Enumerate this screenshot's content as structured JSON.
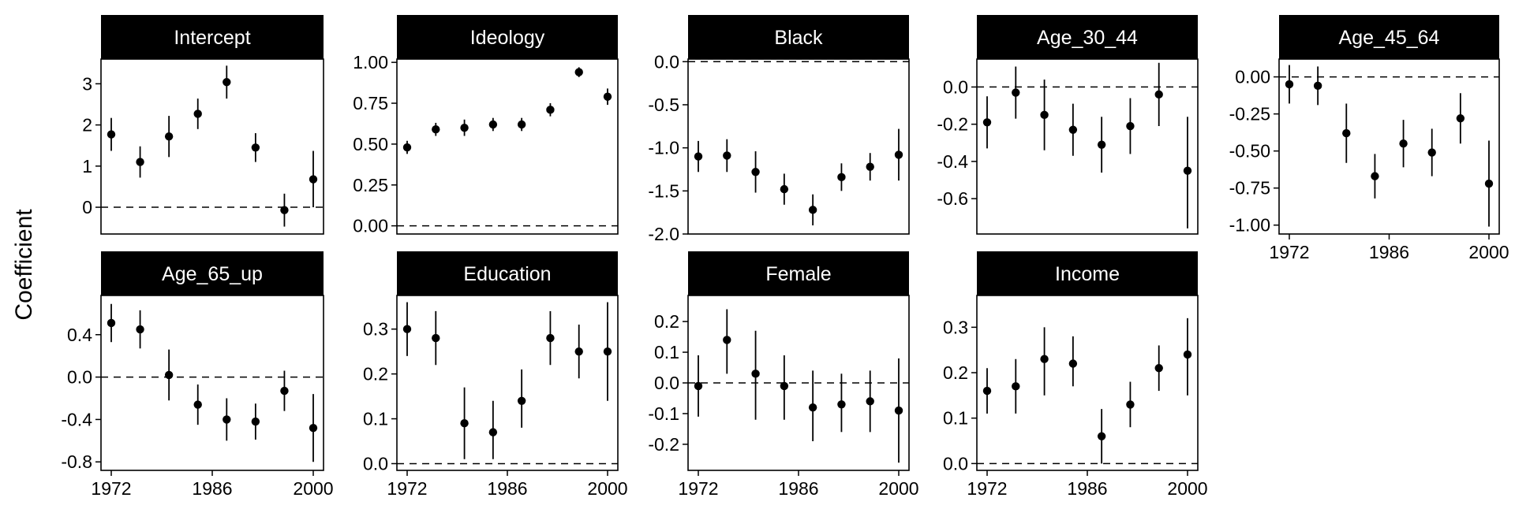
{
  "chart_data": {
    "type": "scatter",
    "style": "faceted point-range plot (estimate with interval whiskers)",
    "ylabel": "Coefficient",
    "x": [
      1972,
      1976,
      1980,
      1984,
      1988,
      1992,
      1996,
      2000
    ],
    "x_ticks": [
      "1972",
      "1986",
      "2000"
    ],
    "reference_line": 0,
    "colors": {
      "points": "#000000",
      "strip": "#000000",
      "strip_text": "#ffffff"
    },
    "panels": [
      {
        "name": "Intercept",
        "estimate": [
          1.77,
          1.1,
          1.72,
          2.27,
          3.04,
          1.45,
          -0.07,
          0.68
        ],
        "lower": [
          1.37,
          0.72,
          1.22,
          1.9,
          2.64,
          1.1,
          -0.47,
          0.0
        ],
        "upper": [
          2.17,
          1.48,
          2.22,
          2.64,
          3.44,
          1.8,
          0.33,
          1.37
        ],
        "ylim": [
          -0.65,
          3.6
        ],
        "yticks": [
          0,
          1,
          2,
          3
        ],
        "ytick_labels": [
          "0",
          "1",
          "2",
          "3"
        ]
      },
      {
        "name": "Ideology",
        "estimate": [
          0.48,
          0.59,
          0.6,
          0.62,
          0.62,
          0.71,
          0.94,
          0.79
        ],
        "lower": [
          0.44,
          0.55,
          0.55,
          0.58,
          0.58,
          0.67,
          0.91,
          0.74
        ],
        "upper": [
          0.52,
          0.63,
          0.65,
          0.66,
          0.66,
          0.75,
          0.97,
          0.84
        ],
        "ylim": [
          -0.05,
          1.02
        ],
        "yticks": [
          0,
          0.25,
          0.5,
          0.75,
          1.0
        ],
        "ytick_labels": [
          "0.00",
          "0.25",
          "0.50",
          "0.75",
          "1.00"
        ]
      },
      {
        "name": "Black",
        "estimate": [
          -1.1,
          -1.09,
          -1.28,
          -1.48,
          -1.72,
          -1.34,
          -1.22,
          -1.08
        ],
        "lower": [
          -1.28,
          -1.28,
          -1.52,
          -1.66,
          -1.9,
          -1.5,
          -1.38,
          -1.38
        ],
        "upper": [
          -0.92,
          -0.9,
          -1.04,
          -1.3,
          -1.54,
          -1.18,
          -1.06,
          -0.78
        ],
        "ylim": [
          -2.0,
          0.03
        ],
        "yticks": [
          0,
          -0.5,
          -1,
          -1.5,
          -2
        ],
        "ytick_labels": [
          "0.0",
          "-0.5",
          "-1.0",
          "-1.5",
          "-2.0"
        ]
      },
      {
        "name": "Age_30_44",
        "estimate": [
          -0.19,
          -0.03,
          -0.15,
          -0.23,
          -0.31,
          -0.21,
          -0.04,
          -0.45
        ],
        "lower": [
          -0.33,
          -0.17,
          -0.34,
          -0.37,
          -0.46,
          -0.36,
          -0.21,
          -0.76
        ],
        "upper": [
          -0.05,
          0.11,
          0.04,
          -0.09,
          -0.16,
          -0.06,
          0.13,
          -0.16
        ],
        "ylim": [
          -0.79,
          0.15
        ],
        "yticks": [
          0,
          -0.2,
          -0.4,
          -0.6
        ],
        "ytick_labels": [
          "0.0",
          "-0.2",
          "-0.4",
          "-0.6"
        ]
      },
      {
        "name": "Age_45_64",
        "estimate": [
          -0.05,
          -0.06,
          -0.38,
          -0.67,
          -0.45,
          -0.51,
          -0.28,
          -0.72
        ],
        "lower": [
          -0.18,
          -0.19,
          -0.58,
          -0.82,
          -0.61,
          -0.67,
          -0.45,
          -1.01
        ],
        "upper": [
          0.08,
          0.07,
          -0.18,
          -0.52,
          -0.29,
          -0.35,
          -0.11,
          -0.43
        ],
        "ylim": [
          -1.06,
          0.12
        ],
        "yticks": [
          0,
          -0.25,
          -0.5,
          -0.75,
          -1.0
        ],
        "ytick_labels": [
          "0.00",
          "-0.25",
          "-0.50",
          "-0.75",
          "-1.00"
        ]
      },
      {
        "name": "Age_65_up",
        "estimate": [
          0.51,
          0.45,
          0.02,
          -0.26,
          -0.4,
          -0.42,
          -0.13,
          -0.48
        ],
        "lower": [
          0.33,
          0.27,
          -0.22,
          -0.45,
          -0.6,
          -0.59,
          -0.32,
          -0.8
        ],
        "upper": [
          0.69,
          0.63,
          0.26,
          -0.07,
          -0.2,
          -0.25,
          0.06,
          -0.16
        ],
        "ylim": [
          -0.88,
          0.77
        ],
        "yticks": [
          0.4,
          0,
          -0.4,
          -0.8
        ],
        "ytick_labels": [
          "0.4",
          "0.0",
          "-0.4",
          "-0.8"
        ]
      },
      {
        "name": "Education",
        "estimate": [
          0.3,
          0.28,
          0.09,
          0.07,
          0.14,
          0.28,
          0.25,
          0.25
        ],
        "lower": [
          0.24,
          0.22,
          0.01,
          0.01,
          0.08,
          0.22,
          0.19,
          0.14
        ],
        "upper": [
          0.36,
          0.34,
          0.17,
          0.14,
          0.21,
          0.34,
          0.31,
          0.36
        ],
        "ylim": [
          -0.015,
          0.375
        ],
        "yticks": [
          0,
          0.1,
          0.2,
          0.3
        ],
        "ytick_labels": [
          "0.0",
          "0.1",
          "0.2",
          "0.3"
        ]
      },
      {
        "name": "Female",
        "estimate": [
          -0.01,
          0.14,
          0.03,
          -0.01,
          -0.08,
          -0.07,
          -0.06,
          -0.09
        ],
        "lower": [
          -0.11,
          0.03,
          -0.12,
          -0.12,
          -0.19,
          -0.16,
          -0.16,
          -0.26
        ],
        "upper": [
          0.09,
          0.24,
          0.17,
          0.09,
          0.04,
          0.03,
          0.04,
          0.08
        ],
        "ylim": [
          -0.285,
          0.285
        ],
        "yticks": [
          0.2,
          0.1,
          0,
          -0.1,
          -0.2
        ],
        "ytick_labels": [
          "0.2",
          "0.1",
          "0.0",
          "-0.1",
          "-0.2"
        ]
      },
      {
        "name": "Income",
        "estimate": [
          0.16,
          0.17,
          0.23,
          0.22,
          0.06,
          0.13,
          0.21,
          0.24
        ],
        "lower": [
          0.11,
          0.11,
          0.15,
          0.17,
          0.0,
          0.08,
          0.16,
          0.15
        ],
        "upper": [
          0.21,
          0.23,
          0.3,
          0.28,
          0.12,
          0.18,
          0.26,
          0.32
        ],
        "ylim": [
          -0.015,
          0.37
        ],
        "yticks": [
          0,
          0.1,
          0.2,
          0.3
        ],
        "ytick_labels": [
          "0.0",
          "0.1",
          "0.2",
          "0.3"
        ]
      }
    ]
  }
}
